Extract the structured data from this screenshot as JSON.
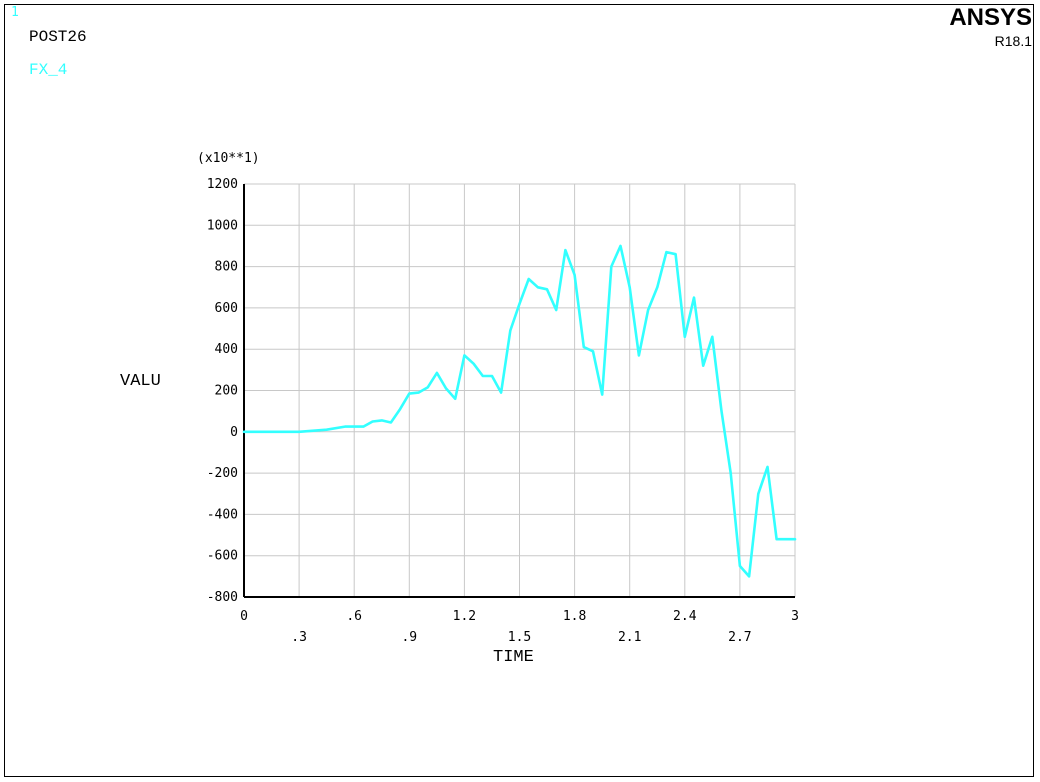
{
  "window": {
    "number": "1",
    "post_label": "POST26",
    "series_label": "FX_4",
    "brand": "ANSYS",
    "version": "R18.1"
  },
  "colors": {
    "curve": "#33ffff",
    "grid": "#c8c8c8",
    "axis": "#000000"
  },
  "chart_data": {
    "type": "line",
    "title": "",
    "xlabel": "TIME",
    "ylabel": "VALU",
    "ymultiplier_label": "(x10**1)",
    "xlim": [
      0,
      3
    ],
    "ylim": [
      -800,
      1200
    ],
    "x_ticks": [
      "0",
      ".3",
      ".6",
      ".9",
      "1.2",
      "1.5",
      "1.8",
      "2.1",
      "2.4",
      "2.7",
      "3"
    ],
    "y_ticks": [
      "1200",
      "1000",
      "800",
      "600",
      "400",
      "200",
      "0",
      "-200",
      "-400",
      "-600",
      "-800"
    ],
    "grid": true,
    "series": [
      {
        "x": [
          0,
          0.3,
          0.45,
          0.55,
          0.65,
          0.7,
          0.75,
          0.8,
          0.85,
          0.9,
          0.95,
          1.0,
          1.05,
          1.1,
          1.15,
          1.2,
          1.25,
          1.3,
          1.35,
          1.4,
          1.45,
          1.5,
          1.55,
          1.6,
          1.65,
          1.7,
          1.75,
          1.8,
          1.85,
          1.9,
          1.95,
          2.0,
          2.05,
          2.1,
          2.15,
          2.2,
          2.25,
          2.3,
          2.35,
          2.4,
          2.45,
          2.5,
          2.55,
          2.6,
          2.65,
          2.7,
          2.75,
          2.8,
          2.85,
          2.9,
          2.95,
          3.0
        ],
        "y": [
          0,
          0,
          10,
          25,
          25,
          50,
          55,
          45,
          110,
          185,
          190,
          215,
          285,
          210,
          160,
          370,
          330,
          270,
          270,
          190,
          490,
          620,
          740,
          700,
          690,
          590,
          880,
          760,
          410,
          390,
          180,
          800,
          900,
          700,
          370,
          590,
          700,
          870,
          860,
          460,
          650,
          320,
          460,
          100,
          -200,
          -650,
          -700,
          -300,
          -170,
          -520,
          -520,
          -520
        ]
      }
    ]
  }
}
